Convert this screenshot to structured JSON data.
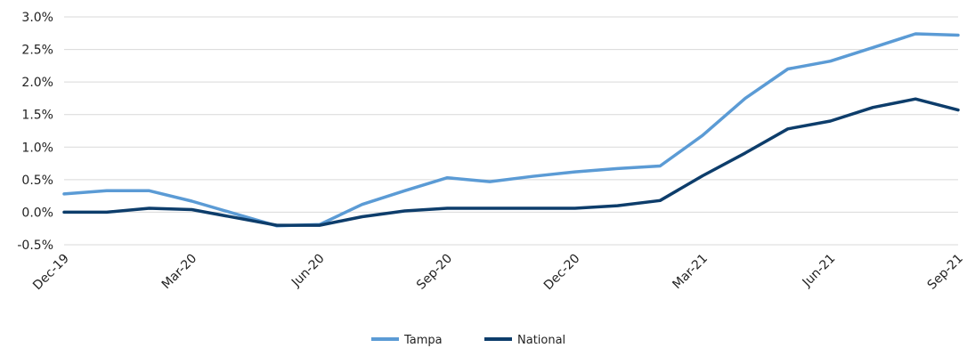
{
  "chart_data": {
    "type": "line",
    "title": "",
    "xlabel": "",
    "ylabel": "",
    "x": [
      "Dec-19",
      "Jan-20",
      "Feb-20",
      "Mar-20",
      "Apr-20",
      "May-20",
      "Jun-20",
      "Jul-20",
      "Aug-20",
      "Sep-20",
      "Oct-20",
      "Nov-20",
      "Dec-20",
      "Jan-21",
      "Feb-21",
      "Mar-21",
      "Apr-21",
      "May-21",
      "Jun-21",
      "Jul-21",
      "Aug-21",
      "Sep-21"
    ],
    "x_tick_labels": [
      "Dec-19",
      "Mar-20",
      "Jun-20",
      "Sep-20",
      "Dec-20",
      "Mar-21",
      "Jun-21",
      "Sep-21"
    ],
    "y_tick_labels": [
      "3.0%",
      "2.5%",
      "2.0%",
      "1.5%",
      "1.0%",
      "0.5%",
      "0.0%",
      "-0.5%"
    ],
    "y_ticks": [
      3.0,
      2.5,
      2.0,
      1.5,
      1.0,
      0.5,
      0.0,
      -0.5
    ],
    "ylim": [
      -0.5,
      3.0
    ],
    "grid": true,
    "legend_position": "bottom",
    "series": [
      {
        "name": "Tampa",
        "color": "#5b9bd5",
        "values": [
          0.28,
          0.33,
          0.33,
          0.17,
          -0.02,
          -0.21,
          -0.19,
          0.12,
          0.33,
          0.53,
          0.47,
          0.55,
          0.62,
          0.67,
          0.71,
          1.18,
          1.75,
          2.2,
          2.32,
          2.53,
          2.74,
          2.72
        ]
      },
      {
        "name": "National",
        "color": "#0d3d6b",
        "values": [
          0.0,
          0.0,
          0.06,
          0.04,
          -0.08,
          -0.2,
          -0.2,
          -0.07,
          0.02,
          0.06,
          0.06,
          0.06,
          0.06,
          0.1,
          0.18,
          0.56,
          0.91,
          1.28,
          1.4,
          1.61,
          1.74,
          1.57
        ]
      }
    ]
  }
}
